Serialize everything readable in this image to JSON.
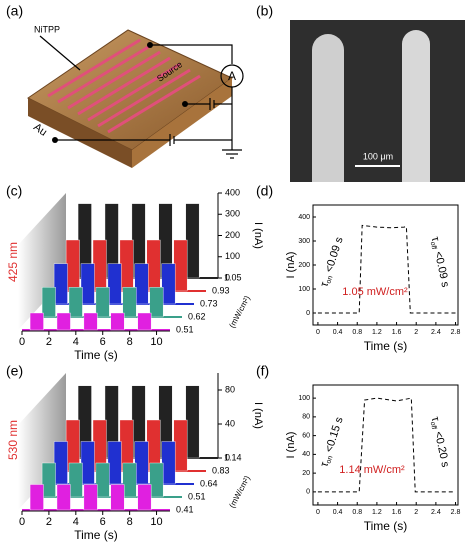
{
  "panel_labels": [
    "(a)",
    "(b)",
    "(c)",
    "(d)",
    "(e)",
    "(f)"
  ],
  "device": {
    "material": "NiTPP",
    "source": "Source",
    "meter": "A",
    "gate": "Au"
  },
  "micrograph": {
    "scale_bar": "100 μm"
  },
  "chart_data": [
    {
      "type": "waterfall",
      "wavelength": "425 nm",
      "xlabel": "Time (s)",
      "ylabel": "I (nA)",
      "zlabel": "(mW/cm²)",
      "xlim": [
        0,
        11
      ],
      "xticks": [
        0,
        2,
        4,
        6,
        8,
        10
      ],
      "ylim": [
        0,
        400
      ],
      "yticks": [
        0,
        100,
        200,
        300,
        400
      ],
      "zticks": [
        0.51,
        0.62,
        0.73,
        0.93,
        1.05
      ],
      "pulse_on": [
        0.6,
        2.6,
        4.6,
        6.6,
        8.6
      ],
      "pulse_off": [
        1.6,
        3.6,
        5.6,
        7.6,
        9.6
      ],
      "series": [
        {
          "color": "#e020e0",
          "values": [
            80,
            80,
            80,
            80,
            80
          ]
        },
        {
          "color": "#3aa08a",
          "values": [
            140,
            140,
            140,
            140,
            140
          ]
        },
        {
          "color": "#2030d0",
          "values": [
            190,
            190,
            190,
            190,
            190
          ]
        },
        {
          "color": "#e03030",
          "values": [
            240,
            240,
            240,
            240,
            240
          ]
        },
        {
          "color": "#222222",
          "values": [
            350,
            350,
            350,
            350,
            350
          ]
        }
      ]
    },
    {
      "type": "line",
      "xlabel": "Time (s)",
      "ylabel": "I (nA)",
      "x": [
        0,
        0.84,
        0.9,
        1.2,
        1.5,
        1.75,
        1.8,
        1.88,
        2.8
      ],
      "series": [
        {
          "color": "#000000",
          "values": [
            0,
            0,
            365,
            358,
            355,
            358,
            360,
            0,
            0
          ]
        }
      ],
      "xlim": [
        -0.1,
        2.85
      ],
      "xticks": [
        0,
        0.4,
        0.8,
        1.2,
        1.6,
        2,
        2.4,
        2.8
      ],
      "ylim": [
        -50,
        450
      ],
      "yticks": [
        0,
        100,
        200,
        300,
        400
      ],
      "annotations": [
        {
          "symbol": "τ",
          "sub": "on",
          "text": " <0.09 s"
        },
        {
          "symbol": "τ",
          "sub": "off",
          "text": " <0.09 s"
        }
      ],
      "note": "1.05 mW/cm²"
    },
    {
      "type": "waterfall",
      "wavelength": "530 nm",
      "xlabel": "Time (s)",
      "ylabel": "I (nA)",
      "zlabel": "(mW/cm²)",
      "xlim": [
        0,
        11
      ],
      "xticks": [
        0,
        2,
        4,
        6,
        8,
        10
      ],
      "ylim": [
        0,
        100
      ],
      "yticks": [
        0,
        40,
        80
      ],
      "zticks": [
        0.41,
        0.51,
        0.64,
        0.83,
        1.14
      ],
      "pulse_on": [
        0.6,
        2.6,
        4.6,
        6.6,
        8.6
      ],
      "pulse_off": [
        1.6,
        3.6,
        5.6,
        7.6,
        9.6
      ],
      "series": [
        {
          "color": "#e020e0",
          "values": [
            30,
            30,
            30,
            30,
            30
          ]
        },
        {
          "color": "#3aa08a",
          "values": [
            40,
            40,
            40,
            40,
            40
          ]
        },
        {
          "color": "#2030d0",
          "values": [
            50,
            50,
            50,
            50,
            50
          ]
        },
        {
          "color": "#e03030",
          "values": [
            60,
            60,
            60,
            60,
            60
          ]
        },
        {
          "color": "#222222",
          "values": [
            85,
            85,
            85,
            85,
            85
          ]
        }
      ]
    },
    {
      "type": "line",
      "xlabel": "Time (s)",
      "ylabel": "I (nA)",
      "x": [
        0,
        0.84,
        0.95,
        1.2,
        1.6,
        1.9,
        1.98,
        2.8
      ],
      "series": [
        {
          "color": "#000000",
          "values": [
            0,
            0,
            98,
            100,
            97,
            100,
            0,
            0
          ]
        }
      ],
      "xlim": [
        -0.1,
        2.85
      ],
      "xticks": [
        0,
        0.4,
        0.8,
        1.2,
        1.6,
        2,
        2.4,
        2.8
      ],
      "ylim": [
        -14,
        114
      ],
      "yticks": [
        0,
        20,
        40,
        60,
        80,
        100
      ],
      "annotations": [
        {
          "symbol": "τ",
          "sub": "on",
          "text": " <0.15 s"
        },
        {
          "symbol": "τ",
          "sub": "off",
          "text": " <0.20 s"
        }
      ],
      "note": "1.14 mW/cm²"
    }
  ]
}
